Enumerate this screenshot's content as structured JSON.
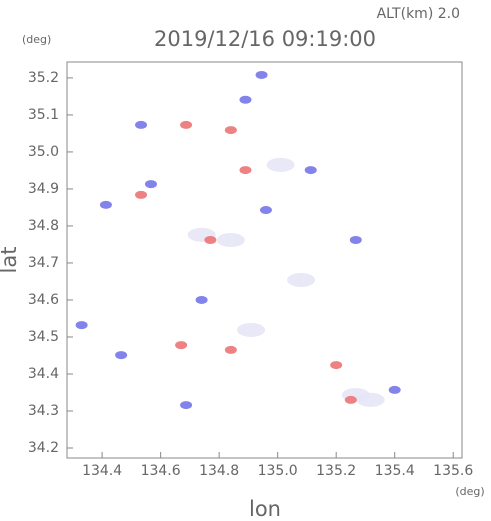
{
  "chart_data": {
    "type": "scatter",
    "title": "2019/12/16 09:19:00",
    "subtitle": "ALT(km) 2.0",
    "y_unit": "(deg)",
    "x_unit": "(deg)",
    "xlabel": "lon",
    "ylabel": "lat",
    "xlim": [
      134.28,
      135.63
    ],
    "ylim": [
      34.173,
      35.243
    ],
    "xticks": [
      134.4,
      134.6,
      134.8,
      {
        "value": 135.0,
        "label": "135.0"
      },
      135.2,
      135.4,
      135.6
    ],
    "yticks": [
      34.2,
      34.3,
      34.4,
      34.5,
      34.6,
      34.7,
      34.8,
      34.9,
      {
        "value": 35.0,
        "label": "35.0"
      },
      35.1,
      35.2
    ],
    "series": [
      {
        "color": "#e6e6f6",
        "x": [
          135.267,
          135.318,
          134.909,
          134.84,
          135.01,
          135.08,
          134.74
        ],
        "y": [
          34.343,
          34.33,
          34.519,
          34.762,
          34.965,
          34.654,
          34.776
        ]
      },
      {
        "color": "#ec7474",
        "x": [
          134.687,
          134.67,
          134.84,
          135.25,
          134.89,
          134.77,
          134.533,
          134.84,
          135.2
        ],
        "y": [
          35.073,
          34.478,
          34.465,
          34.33,
          34.951,
          34.762,
          34.884,
          35.059,
          34.424
        ]
      },
      {
        "color": "#7676ea",
        "x": [
          134.89,
          135.4,
          135.267,
          134.687,
          134.533,
          134.413,
          134.96,
          135.113,
          134.74,
          134.33,
          134.465,
          134.945,
          134.567
        ],
        "y": [
          35.141,
          34.357,
          34.762,
          34.316,
          35.073,
          34.857,
          34.843,
          34.951,
          34.6,
          34.532,
          34.451,
          35.208,
          34.913
        ]
      }
    ]
  }
}
